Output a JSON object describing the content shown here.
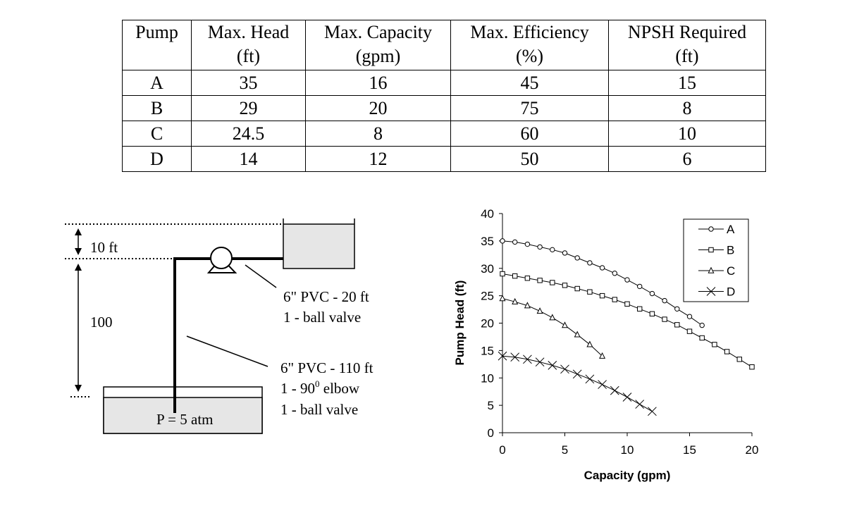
{
  "table": {
    "headers": [
      {
        "line1": "Pump",
        "line2": ""
      },
      {
        "line1": "Max. Head",
        "line2": "(ft)"
      },
      {
        "line1": "Max. Capacity",
        "line2": "(gpm)"
      },
      {
        "line1": "Max. Efficiency",
        "line2": "(%)"
      },
      {
        "line1": "NPSH Required",
        "line2": "(ft)"
      }
    ],
    "rows": [
      [
        "A",
        "35",
        "16",
        "45",
        "15"
      ],
      [
        "B",
        "29",
        "20",
        "75",
        "8"
      ],
      [
        "C",
        "24.5",
        "8",
        "60",
        "10"
      ],
      [
        "D",
        "14",
        "12",
        "50",
        "6"
      ]
    ]
  },
  "diagram": {
    "top_height": "10 ft",
    "bottom_height": "100",
    "discharge_pipe": "6\" PVC - 20 ft",
    "discharge_fitting": "1 - ball valve",
    "suction_pipe": "6\" PVC - 110 ft",
    "suction_elbow_prefix": "1 - 90",
    "suction_elbow_sup": "0",
    "suction_elbow_suffix": " elbow",
    "suction_valve": "1 - ball valve",
    "tank_pressure": "P = 5 atm"
  },
  "chart_data": {
    "type": "line",
    "xlabel": "Capacity (gpm)",
    "ylabel": "Pump Head (ft)",
    "xlim": [
      0,
      20
    ],
    "ylim": [
      0,
      40
    ],
    "xticks": [
      0,
      5,
      10,
      15,
      20
    ],
    "yticks": [
      0,
      5,
      10,
      15,
      20,
      25,
      30,
      35,
      40
    ],
    "legend_position": "top-right",
    "series": [
      {
        "name": "A",
        "marker": "circle",
        "x": [
          0,
          1,
          2,
          3,
          4,
          5,
          6,
          7,
          8,
          9,
          10,
          11,
          12,
          13,
          14,
          15,
          16
        ],
        "y": [
          35,
          34.8,
          34.4,
          33.9,
          33.4,
          32.8,
          31.9,
          31.0,
          30.1,
          29.1,
          27.9,
          26.7,
          25.4,
          24.1,
          22.6,
          21.2,
          19.6
        ]
      },
      {
        "name": "B",
        "marker": "square",
        "x": [
          0,
          1,
          2,
          3,
          4,
          5,
          6,
          7,
          8,
          9,
          10,
          11,
          12,
          13,
          14,
          15,
          16,
          17,
          18,
          19,
          20
        ],
        "y": [
          29,
          28.6,
          28.2,
          27.8,
          27.4,
          26.9,
          26.3,
          25.7,
          25.0,
          24.3,
          23.5,
          22.6,
          21.7,
          20.7,
          19.7,
          18.5,
          17.3,
          16.1,
          14.8,
          13.4,
          12.0
        ]
      },
      {
        "name": "C",
        "marker": "triangle",
        "x": [
          0,
          1,
          2,
          3,
          4,
          5,
          6,
          7,
          8
        ],
        "y": [
          24.5,
          23.9,
          23.2,
          22.2,
          21.0,
          19.6,
          17.9,
          16.1,
          14.0
        ]
      },
      {
        "name": "D",
        "marker": "x",
        "x": [
          0,
          1,
          2,
          3,
          4,
          5,
          6,
          7,
          8,
          9,
          10,
          11,
          12
        ],
        "y": [
          14,
          13.8,
          13.4,
          12.9,
          12.3,
          11.6,
          10.7,
          9.8,
          8.8,
          7.7,
          6.5,
          5.2,
          3.9
        ]
      }
    ]
  }
}
